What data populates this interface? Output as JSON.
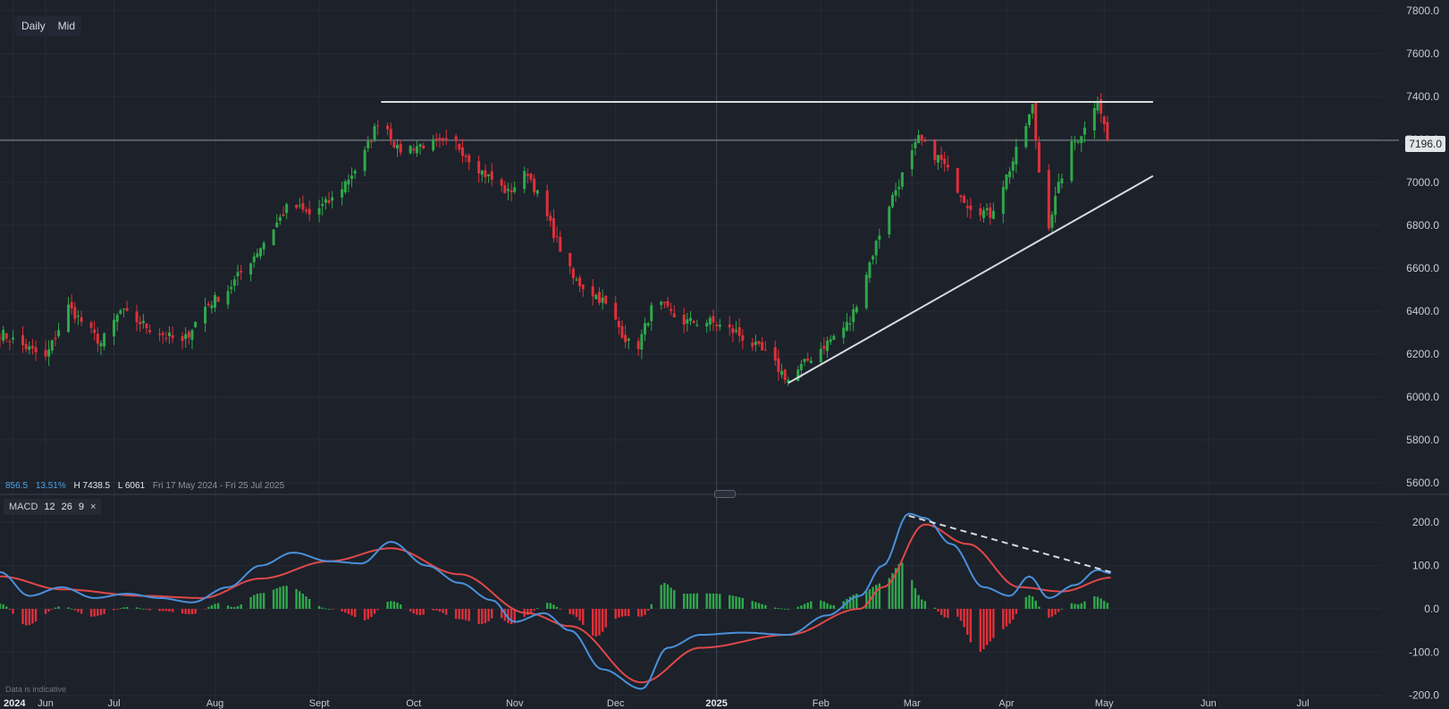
{
  "toolbar": {
    "interval": "Daily",
    "price_type": "Mid"
  },
  "stats": {
    "change": "856.5",
    "change_pct": "13.51%",
    "high": "H 7438.5",
    "low": "L 6061",
    "range": "Fri 17 May 2024 - Fri 25 Jul 2025"
  },
  "last_price": "7196.0",
  "macd_legend": {
    "name": "MACD",
    "fast": "12",
    "slow": "26",
    "signal": "9",
    "close": "×"
  },
  "note": "Data is indicative",
  "colors": {
    "background": "#1c212a",
    "up": "#2fa84a",
    "down": "#e0303a",
    "macd_line": "#4a90d9",
    "signal_line": "#e04848",
    "trendline": "#d8dadd"
  },
  "chart_data": [
    {
      "type": "candlestick",
      "x_ticks": [
        "2024",
        "Jun",
        "Jul",
        "Aug",
        "Sept",
        "Oct",
        "Nov",
        "Dec",
        "2025",
        "Feb",
        "Mar",
        "Apr",
        "May",
        "Jun",
        "Jul"
      ],
      "y_ticks": [
        "7800.0",
        "7600.0",
        "7400.0",
        "7200.0",
        "7000.0",
        "6800.0",
        "6600.0",
        "6400.0",
        "6200.0",
        "6000.0",
        "5800.0",
        "5600.0"
      ],
      "ylim": [
        5550,
        7850
      ],
      "x_range": [
        "2024-05-27",
        "2025-07-25"
      ],
      "series_close": [
        [
          "2024-05-27",
          6300
        ],
        [
          "2024-06-10",
          6180
        ],
        [
          "2024-06-17",
          6420
        ],
        [
          "2024-06-27",
          6250
        ],
        [
          "2024-07-03",
          6400
        ],
        [
          "2024-07-12",
          6320
        ],
        [
          "2024-07-22",
          6250
        ],
        [
          "2024-07-29",
          6420
        ],
        [
          "2024-08-05",
          6500
        ],
        [
          "2024-08-15",
          6700
        ],
        [
          "2024-08-24",
          6900
        ],
        [
          "2024-08-30",
          6850
        ],
        [
          "2024-09-06",
          6920
        ],
        [
          "2024-09-15",
          7100
        ],
        [
          "2024-09-21",
          7320
        ],
        [
          "2024-09-26",
          7150
        ],
        [
          "2024-10-05",
          7180
        ],
        [
          "2024-10-14",
          7180
        ],
        [
          "2024-10-22",
          7050
        ],
        [
          "2024-10-30",
          6950
        ],
        [
          "2024-11-05",
          7050
        ],
        [
          "2024-11-12",
          6800
        ],
        [
          "2024-11-19",
          6550
        ],
        [
          "2024-11-28",
          6450
        ],
        [
          "2024-12-08",
          6200
        ],
        [
          "2024-12-14",
          6450
        ],
        [
          "2024-12-22",
          6350
        ],
        [
          "2024-12-31",
          6350
        ],
        [
          "2025-01-08",
          6300
        ],
        [
          "2025-01-17",
          6200
        ],
        [
          "2025-01-24",
          6080
        ],
        [
          "2025-02-01",
          6200
        ],
        [
          "2025-02-12",
          6350
        ],
        [
          "2025-02-24",
          6900
        ],
        [
          "2025-03-05",
          7200
        ],
        [
          "2025-03-12",
          7100
        ],
        [
          "2025-03-20",
          6900
        ],
        [
          "2025-03-27",
          6850
        ],
        [
          "2025-04-03",
          7100
        ],
        [
          "2025-04-09",
          7350
        ],
        [
          "2025-04-13",
          6750
        ],
        [
          "2025-04-20",
          7150
        ],
        [
          "2025-04-25",
          7250
        ],
        [
          "2025-04-29",
          7400
        ],
        [
          "2025-05-02",
          7196
        ]
      ],
      "resistance": {
        "from": [
          "2024-09-21",
          7375
        ],
        "to": [
          "2025-05-16",
          7375
        ]
      },
      "support": {
        "from": [
          "2025-01-24",
          6065
        ],
        "to": [
          "2025-05-16",
          7030
        ]
      }
    },
    {
      "type": "macd",
      "y_ticks": [
        "200.0",
        "100.0",
        "0.0",
        "-100.0",
        "-200.0"
      ],
      "ylim": [
        -215,
        250
      ],
      "macd": [
        [
          "2024-05-27",
          85
        ],
        [
          "2024-06-05",
          30
        ],
        [
          "2024-06-15",
          50
        ],
        [
          "2024-06-25",
          25
        ],
        [
          "2024-07-05",
          35
        ],
        [
          "2024-07-15",
          25
        ],
        [
          "2024-07-25",
          15
        ],
        [
          "2024-08-05",
          50
        ],
        [
          "2024-08-15",
          100
        ],
        [
          "2024-08-25",
          130
        ],
        [
          "2024-09-05",
          110
        ],
        [
          "2024-09-15",
          105
        ],
        [
          "2024-09-24",
          155
        ],
        [
          "2024-10-05",
          100
        ],
        [
          "2024-10-15",
          60
        ],
        [
          "2024-10-25",
          20
        ],
        [
          "2024-11-01",
          -30
        ],
        [
          "2024-11-10",
          -10
        ],
        [
          "2024-11-18",
          -50
        ],
        [
          "2024-11-28",
          -140
        ],
        [
          "2024-12-10",
          -185
        ],
        [
          "2024-12-18",
          -90
        ],
        [
          "2024-12-28",
          -60
        ],
        [
          "2025-01-10",
          -55
        ],
        [
          "2025-01-24",
          -60
        ],
        [
          "2025-02-05",
          -15
        ],
        [
          "2025-02-15",
          30
        ],
        [
          "2025-02-22",
          100
        ],
        [
          "2025-03-02",
          220
        ],
        [
          "2025-03-07",
          210
        ],
        [
          "2025-03-15",
          150
        ],
        [
          "2025-03-25",
          50
        ],
        [
          "2025-04-02",
          30
        ],
        [
          "2025-04-08",
          75
        ],
        [
          "2025-04-14",
          25
        ],
        [
          "2025-04-22",
          55
        ],
        [
          "2025-04-29",
          90
        ],
        [
          "2025-05-03",
          82
        ]
      ],
      "signal": [
        [
          "2024-05-27",
          75
        ],
        [
          "2024-06-15",
          45
        ],
        [
          "2024-07-10",
          30
        ],
        [
          "2024-07-28",
          25
        ],
        [
          "2024-08-15",
          70
        ],
        [
          "2024-09-05",
          110
        ],
        [
          "2024-09-24",
          140
        ],
        [
          "2024-10-15",
          80
        ],
        [
          "2024-11-05",
          -10
        ],
        [
          "2024-11-18",
          -40
        ],
        [
          "2024-12-10",
          -170
        ],
        [
          "2024-12-28",
          -90
        ],
        [
          "2025-01-24",
          -60
        ],
        [
          "2025-02-15",
          0
        ],
        [
          "2025-02-22",
          50
        ],
        [
          "2025-03-07",
          195
        ],
        [
          "2025-03-20",
          150
        ],
        [
          "2025-04-05",
          50
        ],
        [
          "2025-04-18",
          40
        ],
        [
          "2025-05-03",
          72
        ]
      ],
      "divergence": {
        "from": [
          "2025-03-02",
          215
        ],
        "to": [
          "2025-05-03",
          85
        ]
      }
    }
  ]
}
